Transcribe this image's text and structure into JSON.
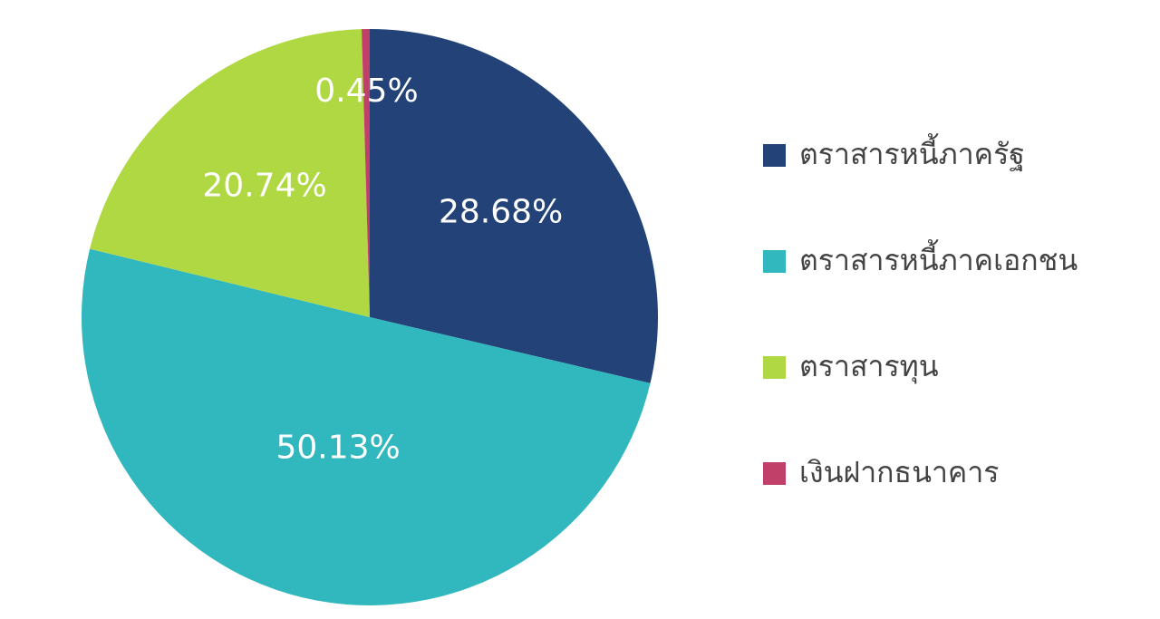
{
  "chart_data": {
    "type": "pie",
    "categories": [
      "ตราสารหนี้ภาครัฐ",
      "ตราสารหนี้ภาคเอกชน",
      "ตราสารทุน",
      "เงินฝากธนาคาร"
    ],
    "values": [
      28.68,
      50.13,
      20.74,
      0.45
    ],
    "value_labels": [
      "28.68%",
      "50.13%",
      "20.74%",
      "0.45%"
    ],
    "colors": [
      "#234378",
      "#31b7be",
      "#afd843",
      "#c0406a"
    ],
    "legend": "right"
  }
}
